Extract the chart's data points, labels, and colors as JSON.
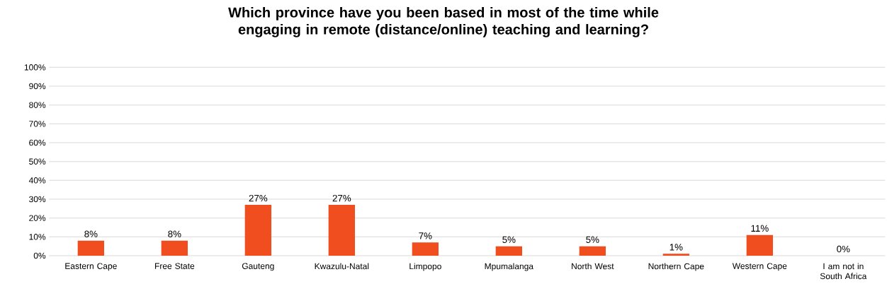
{
  "chart_data": {
    "type": "bar",
    "title": "Which province have you been based in most of the time while engaging in remote (distance/online) teaching and learning?",
    "categories": [
      "Eastern Cape",
      "Free State",
      "Gauteng",
      "Kwazulu-Natal",
      "Limpopo",
      "Mpumalanga",
      "North West",
      "Northern Cape",
      "Western Cape",
      "I am not in South Africa"
    ],
    "values": [
      8,
      8,
      27,
      27,
      7,
      5,
      5,
      1,
      11,
      0
    ],
    "value_labels": [
      "8%",
      "8%",
      "27%",
      "27%",
      "7%",
      "5%",
      "5%",
      "1%",
      "11%",
      "0%"
    ],
    "color": "#f04e1e",
    "ylim": [
      0,
      100
    ],
    "yticks": [
      {
        "value": 0,
        "label": "0%"
      },
      {
        "value": 10,
        "label": "10%"
      },
      {
        "value": 20,
        "label": "20%"
      },
      {
        "value": 30,
        "label": "30%"
      },
      {
        "value": 40,
        "label": "40%"
      },
      {
        "value": 50,
        "label": "50%"
      },
      {
        "value": 60,
        "label": "60%"
      },
      {
        "value": 70,
        "label": "70%"
      },
      {
        "value": 80,
        "label": "80%"
      },
      {
        "value": 90,
        "label": "90%"
      },
      {
        "value": 100,
        "label": "100%"
      }
    ],
    "grid": "y"
  }
}
